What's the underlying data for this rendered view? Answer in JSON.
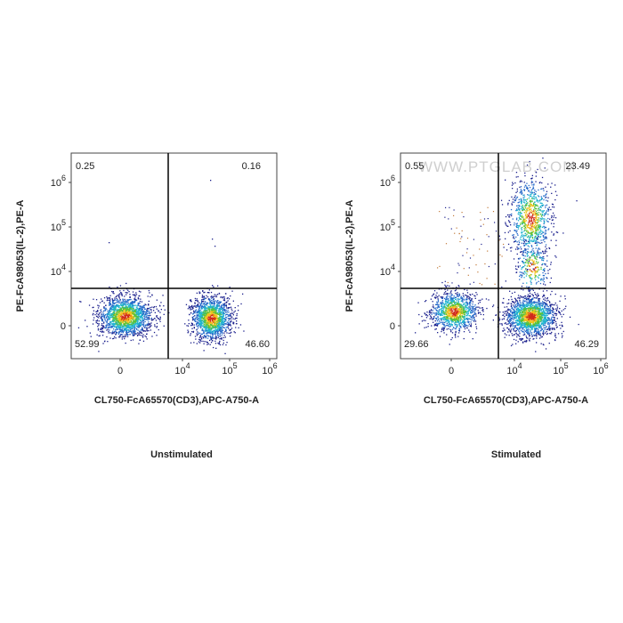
{
  "panels": [
    {
      "y_label": "PE-FcA98053(IL-2),PE-A",
      "x_label": "CL750-FcA65570(CD3),APC-A750-A",
      "caption": "Unstimulated",
      "quadrants": {
        "upper_left": "0.25",
        "upper_right": "0.16",
        "lower_left": "52.99",
        "lower_right": "46.60"
      },
      "y_ticks": [
        "0",
        {
          "base": "10",
          "exp": "4"
        },
        {
          "base": "10",
          "exp": "5"
        },
        {
          "base": "10",
          "exp": "6"
        }
      ],
      "x_ticks": [
        "0",
        {
          "base": "10",
          "exp": "4"
        },
        {
          "base": "10",
          "exp": "5"
        },
        {
          "base": "10",
          "exp": "6"
        }
      ]
    },
    {
      "y_label": "PE-FcA98053(IL-2),PE-A",
      "x_label": "CL750-FcA65570(CD3),APC-A750-A",
      "caption": "Stimulated",
      "quadrants": {
        "upper_left": "0.55",
        "upper_right": "23.49",
        "lower_left": "29.66",
        "lower_right": "46.29"
      },
      "y_ticks": [
        "0",
        {
          "base": "10",
          "exp": "4"
        },
        {
          "base": "10",
          "exp": "5"
        },
        {
          "base": "10",
          "exp": "6"
        }
      ],
      "x_ticks": [
        "0",
        {
          "base": "10",
          "exp": "4"
        },
        {
          "base": "10",
          "exp": "5"
        },
        {
          "base": "10",
          "exp": "6"
        }
      ]
    }
  ],
  "watermark": "WWW.PTGLAB.COM"
}
